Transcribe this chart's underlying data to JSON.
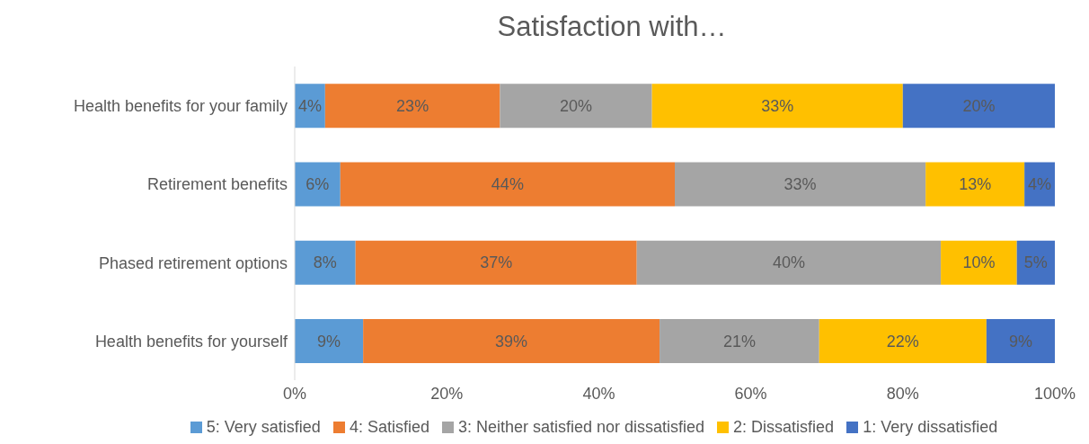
{
  "chart_data": {
    "type": "bar",
    "title": "Satisfaction with…",
    "orientation": "horizontal",
    "stacked": true,
    "categories": [
      "Health benefits for your family",
      "Retirement benefits",
      "Phased retirement options",
      "Health benefits for yourself"
    ],
    "series": [
      {
        "name": "5: Very satisfied",
        "color": "#5b9bd5",
        "values": [
          4,
          6,
          8,
          9
        ],
        "value_labels": [
          "4%",
          "6%",
          "8%",
          "9%"
        ]
      },
      {
        "name": "4: Satisfied",
        "color": "#ed7d31",
        "values": [
          23,
          44,
          37,
          39
        ],
        "value_labels": [
          "23%",
          "44%",
          "37%",
          "39%"
        ]
      },
      {
        "name": "3: Neither satisfied nor dissatisfied",
        "color": "#a5a5a5",
        "values": [
          20,
          33,
          40,
          21
        ],
        "value_labels": [
          "20%",
          "33%",
          "40%",
          "21%"
        ]
      },
      {
        "name": "2: Dissatisfied",
        "color": "#ffc000",
        "values": [
          33,
          13,
          10,
          22
        ],
        "value_labels": [
          "33%",
          "13%",
          "10%",
          "22%"
        ]
      },
      {
        "name": "1: Very dissatisfied",
        "color": "#4472c4",
        "values": [
          20,
          4,
          5,
          9
        ],
        "value_labels": [
          "20%",
          "4%",
          "5%",
          "9%"
        ]
      }
    ],
    "xlim": [
      0,
      100
    ],
    "xticks": [
      {
        "value": 0,
        "label": "0%"
      },
      {
        "value": 20,
        "label": "20%"
      },
      {
        "value": 40,
        "label": "40%"
      },
      {
        "value": 60,
        "label": "60%"
      },
      {
        "value": 80,
        "label": "80%"
      },
      {
        "value": 100,
        "label": "100%"
      }
    ],
    "grid": false,
    "legend": "bottom"
  }
}
